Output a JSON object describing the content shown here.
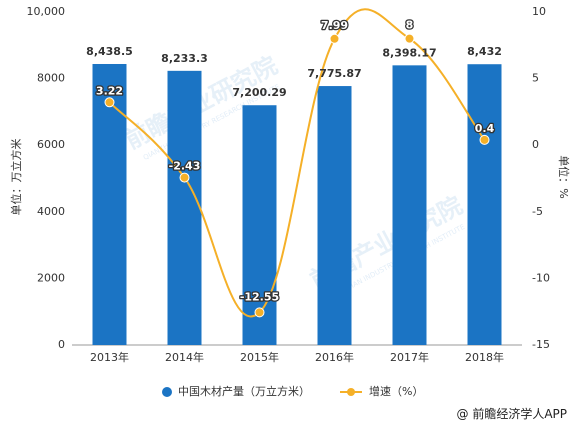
{
  "chart_data": {
    "type": "bar",
    "categories": [
      "2013年",
      "2014年",
      "2015年",
      "2016年",
      "2017年",
      "2018年"
    ],
    "series": [
      {
        "name": "中国木材产量（万立方米）",
        "type": "bar",
        "axis": "left",
        "color": "#1b74c4",
        "values": [
          8438.5,
          8233.3,
          7200.29,
          7775.87,
          8398.17,
          8432
        ],
        "labels": [
          "8,438.5",
          "8,233.3",
          "7,200.29",
          "7,775.87",
          "8,398.17",
          "8,432"
        ]
      },
      {
        "name": "增速（%）",
        "type": "line",
        "axis": "right",
        "color": "#f5b028",
        "values": [
          3.22,
          -2.43,
          -12.55,
          7.99,
          8,
          0.4
        ],
        "labels": [
          "3.22",
          "-2.43",
          "-12.55",
          "7.99",
          "8",
          "0.4"
        ]
      }
    ],
    "ylabel": "单位：万立方米",
    "y2label": "单位：%",
    "ylim": [
      0,
      10000
    ],
    "y2lim": [
      -15,
      10
    ],
    "yticks": [
      {
        "v": 0,
        "t": "0"
      },
      {
        "v": 2000,
        "t": "2000"
      },
      {
        "v": 4000,
        "t": "4000"
      },
      {
        "v": 6000,
        "t": "6000"
      },
      {
        "v": 8000,
        "t": "8000"
      },
      {
        "v": 10000,
        "t": "10,000"
      }
    ],
    "y2ticks": [
      {
        "v": -15,
        "t": "-15"
      },
      {
        "v": -10,
        "t": "-10"
      },
      {
        "v": -5,
        "t": "-5"
      },
      {
        "v": 0,
        "t": "0"
      },
      {
        "v": 5,
        "t": "5"
      },
      {
        "v": 10,
        "t": "10"
      }
    ],
    "legend_position": "bottom",
    "grid": false
  },
  "watermark": {
    "text": "前瞻产业研究院",
    "subtext": "QIANZHAN INDUSTRY RESEARCH INSTITUTE"
  },
  "source": "@ 前瞻经济学人APP"
}
